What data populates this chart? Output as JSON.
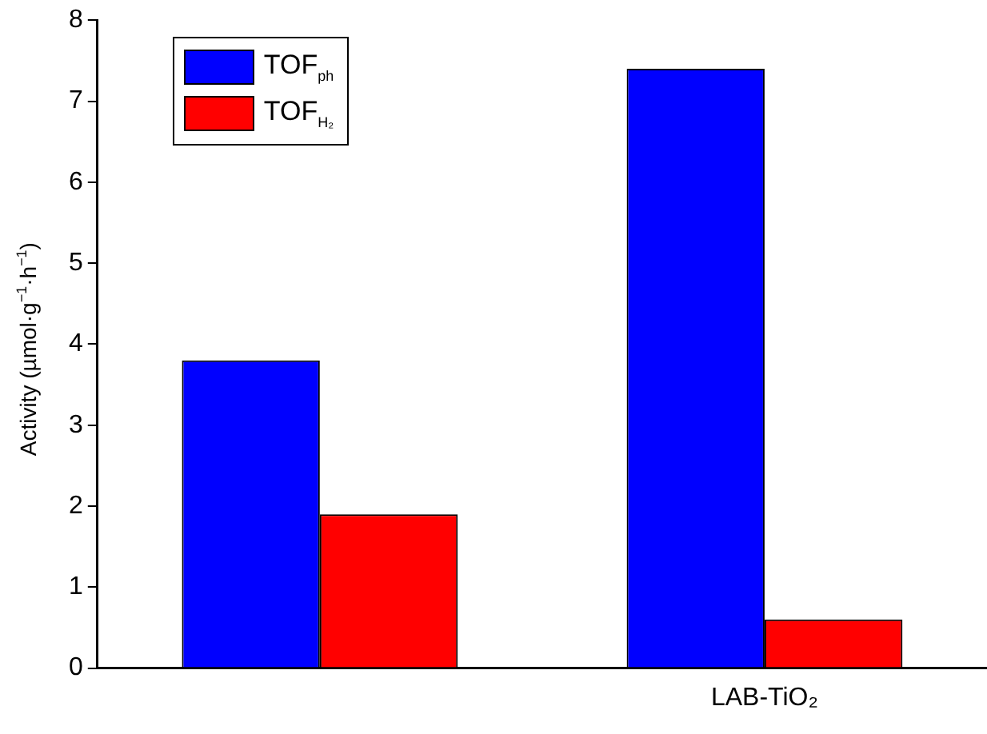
{
  "chart_data": {
    "type": "bar",
    "ylabel": "Activity (µmol·g$^{−1}$·h$^{−1}$)",
    "categories": [
      null,
      "LAB-TiO₂"
    ],
    "series": [
      {
        "name": "TOF$_{ph}$",
        "color": "#0000ff",
        "values": [
          3.8,
          7.4
        ]
      },
      {
        "name": "TOF$_{H₂}$",
        "color": "#ff0000",
        "values": [
          1.9,
          0.6
        ]
      }
    ],
    "ylim": [
      0,
      8
    ],
    "yticks": [
      0,
      1,
      2,
      3,
      4,
      5,
      6,
      7,
      8
    ],
    "grid": false,
    "legend": "top left"
  }
}
